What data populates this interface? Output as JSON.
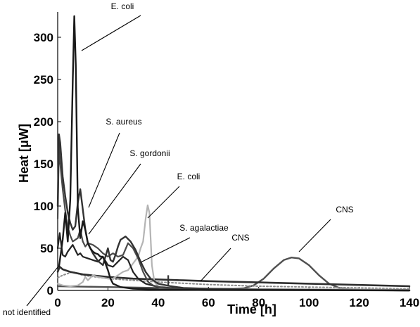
{
  "chart_data": {
    "type": "line",
    "xlabel": "Time [h]",
    "ylabel": "Heat [μW]",
    "xlim": [
      0,
      140
    ],
    "ylim": [
      0,
      330
    ],
    "xticks": [
      0,
      20,
      40,
      60,
      80,
      100,
      120,
      140
    ],
    "yticks": [
      0,
      50,
      100,
      150,
      200,
      250,
      300
    ],
    "grid": false,
    "series": [
      {
        "name": "E. coli",
        "color": "#1a1a1a",
        "width": 2.4,
        "points": [
          [
            0.5,
            28
          ],
          [
            2,
            60
          ],
          [
            3,
            92
          ],
          [
            4,
            58
          ],
          [
            5,
            108
          ],
          [
            6,
            248
          ],
          [
            6.6,
            325
          ],
          [
            7.2,
            268
          ],
          [
            8,
            98
          ],
          [
            9,
            62
          ],
          [
            10,
            82
          ],
          [
            11,
            72
          ],
          [
            12,
            56
          ],
          [
            13,
            50
          ],
          [
            14,
            46
          ],
          [
            15,
            44
          ],
          [
            16,
            43
          ],
          [
            17,
            40
          ],
          [
            18,
            40
          ],
          [
            19,
            32
          ],
          [
            20,
            24
          ],
          [
            21,
            14
          ],
          [
            22,
            8
          ],
          [
            25,
            4
          ],
          [
            30,
            2
          ],
          [
            40,
            1
          ],
          [
            60,
            0.5
          ],
          [
            140,
            0
          ]
        ]
      },
      {
        "name": "S. aureus",
        "color": "#333333",
        "width": 2.4,
        "points": [
          [
            0,
            100
          ],
          [
            0.5,
            185
          ],
          [
            1,
            175
          ],
          [
            2,
            135
          ],
          [
            3,
            112
          ],
          [
            4,
            92
          ],
          [
            5,
            80
          ],
          [
            6,
            72
          ],
          [
            7,
            76
          ],
          [
            8,
            104
          ],
          [
            9,
            120
          ],
          [
            10,
            96
          ],
          [
            11,
            72
          ],
          [
            12,
            56
          ],
          [
            13,
            50
          ],
          [
            14,
            44
          ],
          [
            16,
            35
          ],
          [
            18,
            30
          ],
          [
            20,
            50
          ],
          [
            21,
            36
          ],
          [
            22,
            34
          ],
          [
            23,
            42
          ],
          [
            24,
            52
          ],
          [
            25,
            60
          ],
          [
            27,
            64
          ],
          [
            29,
            58
          ],
          [
            31,
            48
          ],
          [
            33,
            34
          ],
          [
            35,
            22
          ],
          [
            37,
            14
          ],
          [
            40,
            8
          ],
          [
            45,
            5
          ],
          [
            50,
            3
          ],
          [
            60,
            2
          ],
          [
            80,
            1
          ],
          [
            140,
            0
          ]
        ]
      },
      {
        "name": "S. gordonii",
        "color": "#4a4a4a",
        "width": 2.2,
        "points": [
          [
            0,
            85
          ],
          [
            0.5,
            172
          ],
          [
            1,
            150
          ],
          [
            2,
            120
          ],
          [
            3,
            95
          ],
          [
            4,
            75
          ],
          [
            5,
            65
          ],
          [
            6,
            58
          ],
          [
            8,
            62
          ],
          [
            9,
            72
          ],
          [
            10,
            58
          ],
          [
            11,
            52
          ],
          [
            12,
            56
          ],
          [
            14,
            54
          ],
          [
            16,
            50
          ],
          [
            18,
            44
          ],
          [
            20,
            40
          ],
          [
            22,
            44
          ],
          [
            24,
            40
          ],
          [
            26,
            42
          ],
          [
            28,
            56
          ],
          [
            30,
            50
          ],
          [
            32,
            38
          ],
          [
            34,
            22
          ],
          [
            36,
            10
          ],
          [
            38,
            6
          ],
          [
            42,
            3
          ],
          [
            50,
            2
          ],
          [
            60,
            1
          ],
          [
            140,
            0
          ]
        ]
      },
      {
        "name": "E. coli",
        "color": "#b4b4b4",
        "width": 2.2,
        "points": [
          [
            0,
            8
          ],
          [
            2,
            6
          ],
          [
            5,
            5
          ],
          [
            8,
            6
          ],
          [
            10,
            10
          ],
          [
            11,
            16
          ],
          [
            12,
            12
          ],
          [
            14,
            18
          ],
          [
            16,
            16
          ],
          [
            18,
            15
          ],
          [
            20,
            14
          ],
          [
            22,
            14
          ],
          [
            24,
            18
          ],
          [
            26,
            22
          ],
          [
            28,
            24
          ],
          [
            30,
            32
          ],
          [
            32,
            40
          ],
          [
            33,
            50
          ],
          [
            34,
            58
          ],
          [
            35,
            85
          ],
          [
            35.8,
            101
          ],
          [
            36.5,
            92
          ],
          [
            37.5,
            30
          ],
          [
            38.5,
            10
          ],
          [
            40,
            5
          ],
          [
            45,
            3
          ],
          [
            60,
            2
          ],
          [
            140,
            1
          ]
        ]
      },
      {
        "name": "S. agalactiae",
        "color": "#222222",
        "width": 2.2,
        "points": [
          [
            0,
            50
          ],
          [
            0.8,
            68
          ],
          [
            1.5,
            52
          ],
          [
            2,
            42
          ],
          [
            3,
            40
          ],
          [
            4,
            46
          ],
          [
            6,
            54
          ],
          [
            7,
            48
          ],
          [
            8,
            42
          ],
          [
            9,
            44
          ],
          [
            10,
            40
          ],
          [
            12,
            38
          ],
          [
            14,
            36
          ],
          [
            16,
            34
          ],
          [
            18,
            40
          ],
          [
            20,
            30
          ],
          [
            22,
            28
          ],
          [
            24,
            34
          ],
          [
            26,
            40
          ],
          [
            28,
            36
          ],
          [
            30,
            22
          ],
          [
            32,
            14
          ],
          [
            35,
            8
          ],
          [
            40,
            4
          ],
          [
            50,
            2
          ],
          [
            60,
            1
          ],
          [
            140,
            0
          ]
        ]
      },
      {
        "name": "CNS",
        "color": "#505050",
        "width": 2.4,
        "points": [
          [
            0,
            5
          ],
          [
            20,
            4
          ],
          [
            40,
            3
          ],
          [
            60,
            2
          ],
          [
            70,
            2
          ],
          [
            74,
            2.5
          ],
          [
            78,
            6
          ],
          [
            82,
            14
          ],
          [
            86,
            26
          ],
          [
            90,
            36
          ],
          [
            93,
            39
          ],
          [
            96,
            38
          ],
          [
            100,
            30
          ],
          [
            104,
            18
          ],
          [
            108,
            8
          ],
          [
            112,
            3
          ],
          [
            116,
            1.5
          ],
          [
            125,
            0.6
          ],
          [
            140,
            0.3
          ]
        ]
      },
      {
        "name": "CNS",
        "color": "#2e2e2e",
        "width": 2.6,
        "points": [
          [
            0,
            22
          ],
          [
            0.8,
            28
          ],
          [
            2,
            25
          ],
          [
            5,
            22
          ],
          [
            10,
            19
          ],
          [
            20,
            16
          ],
          [
            30,
            14
          ],
          [
            40,
            13
          ],
          [
            50,
            12
          ],
          [
            60,
            11
          ],
          [
            80,
            9.5
          ],
          [
            100,
            8
          ],
          [
            120,
            6.5
          ],
          [
            140,
            5
          ]
        ]
      },
      {
        "name": "not identified",
        "color": "#8a8a8a",
        "width": 2.0,
        "dash": "2,3",
        "points": [
          [
            0,
            15
          ],
          [
            2,
            18
          ],
          [
            4,
            20
          ],
          [
            6,
            22
          ],
          [
            8,
            20
          ],
          [
            10,
            18
          ],
          [
            15,
            16
          ],
          [
            20,
            14
          ],
          [
            30,
            12
          ],
          [
            40,
            10
          ],
          [
            60,
            7
          ],
          [
            80,
            5
          ],
          [
            100,
            4
          ],
          [
            120,
            3
          ],
          [
            140,
            2
          ]
        ]
      }
    ],
    "annotations": [
      {
        "text": "E. coli",
        "x": 27,
        "y": 338
      },
      {
        "text": "S. aureus",
        "x": 22,
        "y": 193
      },
      {
        "text": "S. gordonii",
        "x": 33,
        "y": 163
      },
      {
        "text": "E. coli",
        "x": 52,
        "y": 133
      },
      {
        "text": "S. agalactiae",
        "x": 52,
        "y": 71
      },
      {
        "text": "CNS",
        "x": 73,
        "y": 59
      },
      {
        "text": "CNS",
        "x": 112,
        "y": 89
      },
      {
        "text": "not identified",
        "x": -22,
        "y": -30
      }
    ]
  }
}
